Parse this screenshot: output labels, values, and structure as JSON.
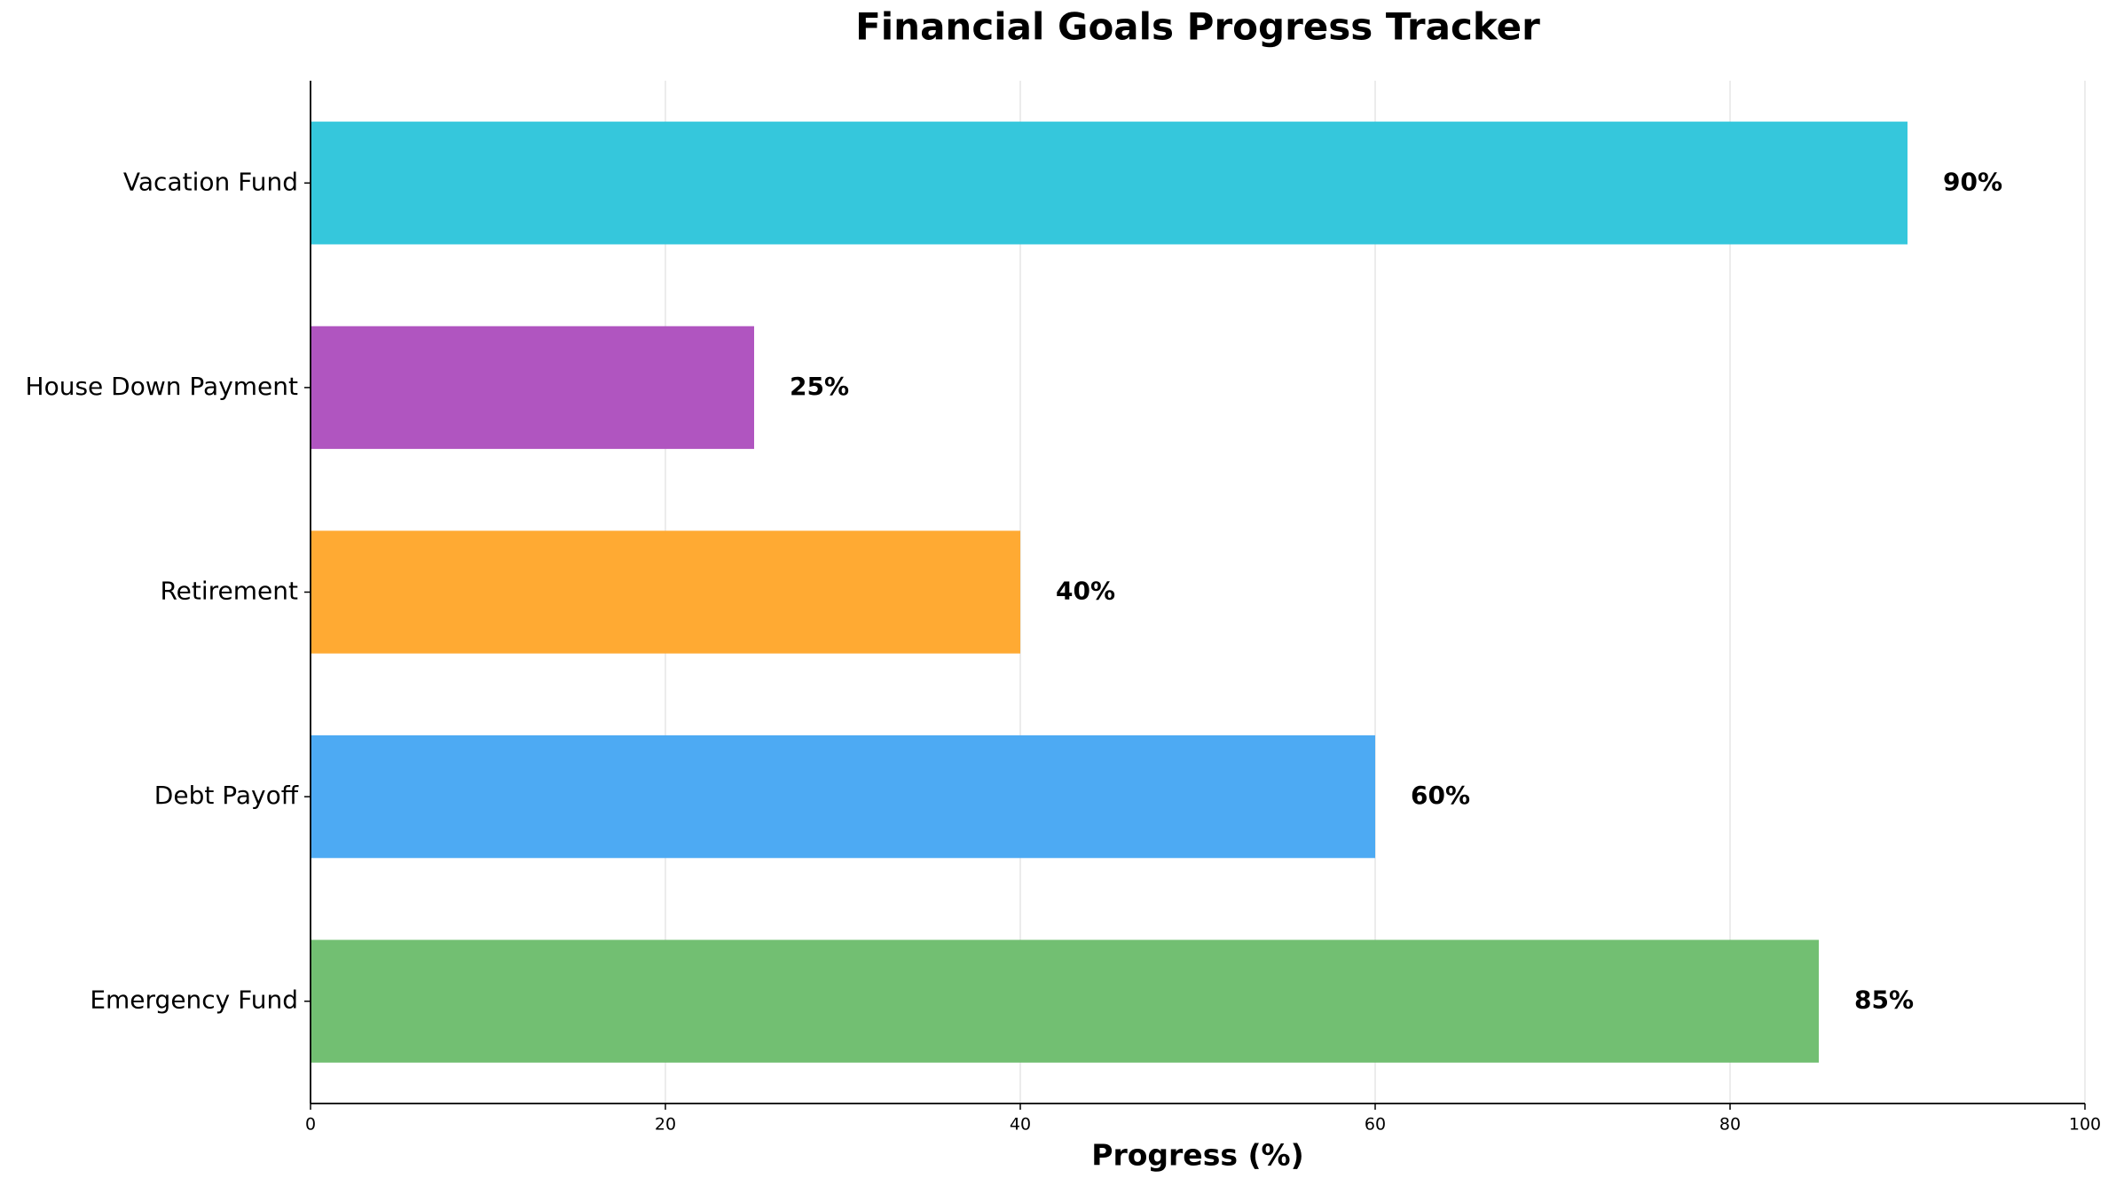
{
  "chart_data": {
    "type": "barh",
    "title": "Financial Goals Progress Tracker",
    "xlabel": "Progress (%)",
    "categories": [
      "Emergency Fund",
      "Debt Payoff",
      "Retirement",
      "House Down Payment",
      "Vacation Fund"
    ],
    "values": [
      85,
      60,
      40,
      25,
      90
    ],
    "value_labels": [
      "85%",
      "60%",
      "40%",
      "25%",
      "90%"
    ],
    "colors": [
      "#72bf72",
      "#4daaf3",
      "#ffaa33",
      "#b055c0",
      "#35c7dc"
    ],
    "xlim": [
      0,
      100
    ],
    "xticks": [
      0,
      20,
      40,
      60,
      80,
      100
    ],
    "grid": true
  }
}
